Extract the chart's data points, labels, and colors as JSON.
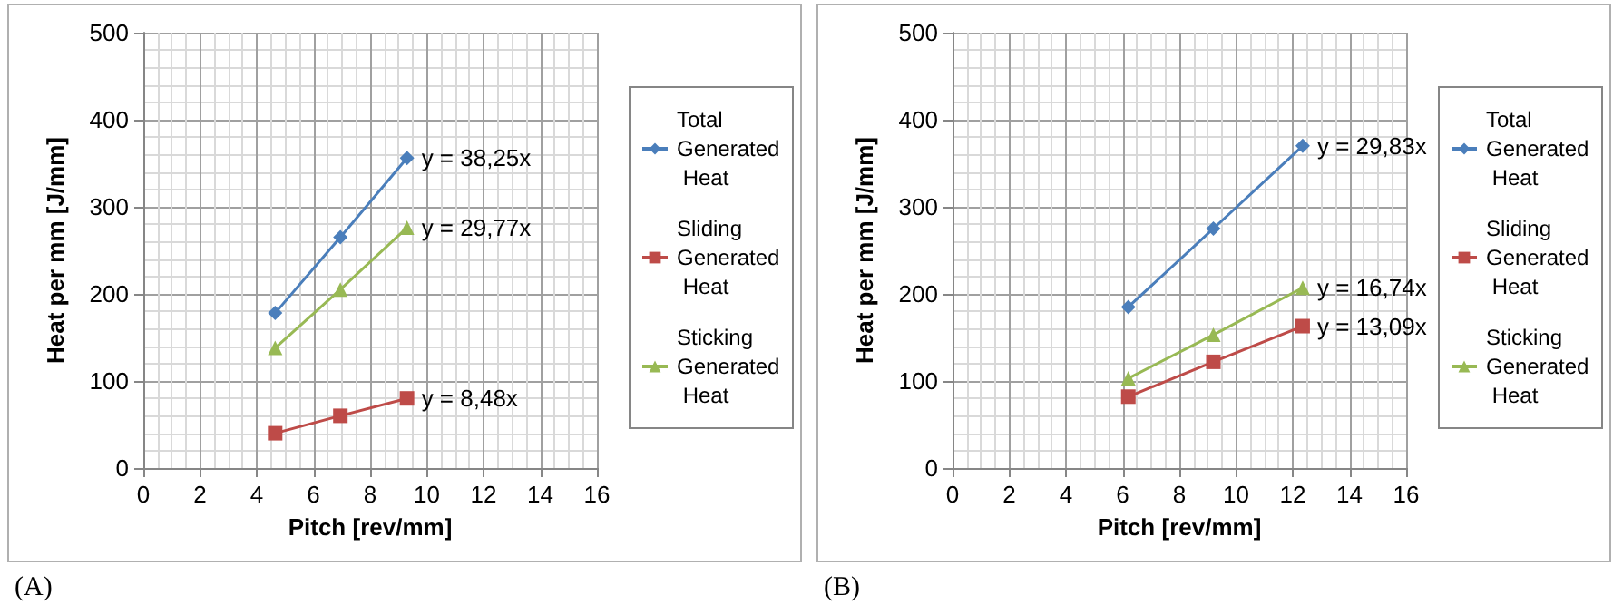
{
  "chart_data": [
    {
      "type": "line",
      "xlabel": "Pitch [rev/mm]",
      "ylabel": "Heat per mm [J/mm]",
      "xlim": [
        0,
        16
      ],
      "xticks": [
        0,
        2,
        4,
        6,
        8,
        10,
        12,
        14,
        16
      ],
      "ylim": [
        0,
        500
      ],
      "yticks": [
        0,
        100,
        200,
        300,
        400,
        500
      ],
      "grid": true,
      "legend": "right",
      "series": [
        {
          "name": "Total Generated Heat",
          "color": "#4a7ebb",
          "marker": "diamond",
          "x": [
            4.65,
            6.95,
            9.3
          ],
          "values": [
            178,
            265,
            356
          ]
        },
        {
          "name": "Sliding Generated Heat",
          "color": "#be4b48",
          "marker": "square",
          "x": [
            4.65,
            6.95,
            9.3
          ],
          "values": [
            40,
            60,
            80
          ]
        },
        {
          "name": "Sticking Generated Heat",
          "color": "#98b954",
          "marker": "triangle",
          "x": [
            4.65,
            6.95,
            9.3
          ],
          "values": [
            138,
            205,
            276
          ]
        }
      ],
      "annotations": [
        "y = 38,25x",
        "y = 8,48x",
        "y = 29,77x",
        "(A)"
      ]
    },
    {
      "type": "line",
      "xlabel": "Pitch [rev/mm]",
      "ylabel": "Heat per mm [J/mm]",
      "xlim": [
        0,
        16
      ],
      "xticks": [
        0,
        2,
        4,
        6,
        8,
        10,
        12,
        14,
        16
      ],
      "ylim": [
        0,
        500
      ],
      "yticks": [
        0,
        100,
        200,
        300,
        400,
        500
      ],
      "grid": true,
      "legend": "right",
      "series": [
        {
          "name": "Total Generated Heat",
          "color": "#4a7ebb",
          "marker": "diamond",
          "x": [
            6.2,
            9.2,
            12.35
          ],
          "values": [
            185,
            275,
            370
          ]
        },
        {
          "name": "Sliding Generated Heat",
          "color": "#be4b48",
          "marker": "square",
          "x": [
            6.2,
            9.2,
            12.35
          ],
          "values": [
            82,
            122,
            163
          ]
        },
        {
          "name": "Sticking Generated Heat",
          "color": "#98b954",
          "marker": "triangle",
          "x": [
            6.2,
            9.2,
            12.35
          ],
          "values": [
            103,
            153,
            207
          ]
        }
      ],
      "annotations": [
        "y = 29,83x",
        "y = 13,09x",
        "y = 16,74x",
        "(B)"
      ]
    }
  ]
}
